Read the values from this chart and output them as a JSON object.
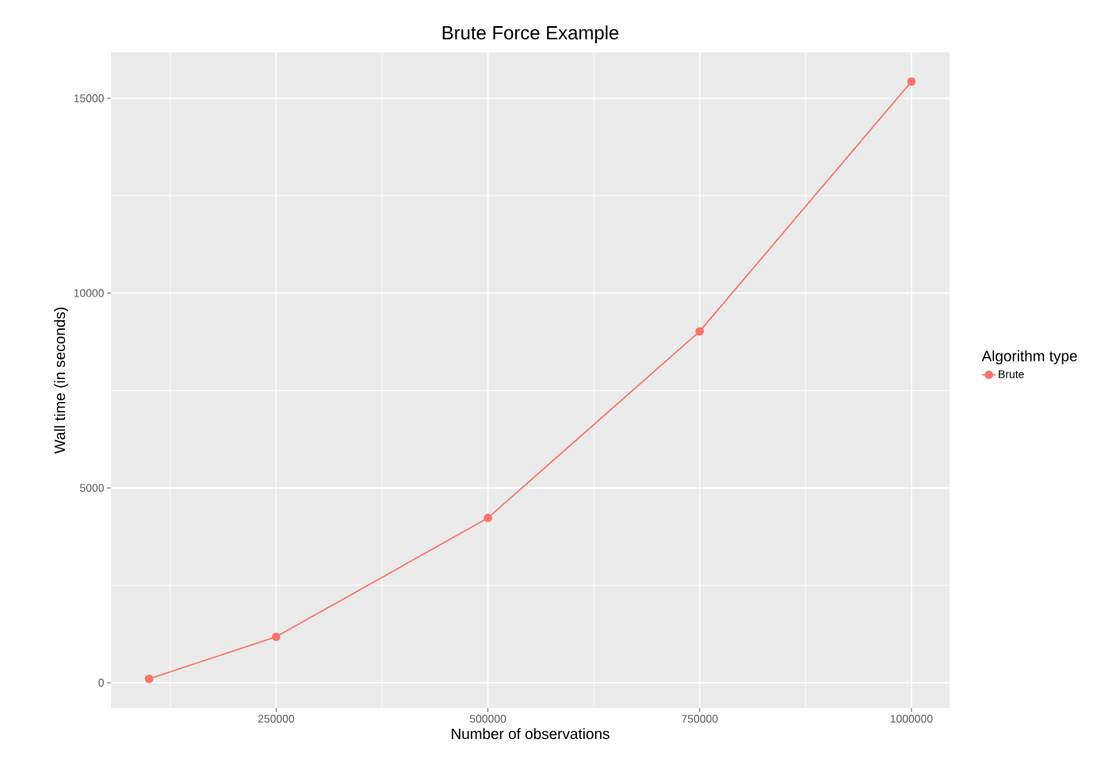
{
  "chart_data": {
    "type": "line",
    "title": "Brute Force Example",
    "xlabel": "Number of observations",
    "ylabel": "Wall time (in seconds)",
    "legend_title": "Algorithm type",
    "x": [
      100000,
      250000,
      500000,
      750000,
      1000000
    ],
    "series": [
      {
        "name": "Brute",
        "color": "#f8766d",
        "values": [
          100,
          1180,
          4230,
          9020,
          15430
        ]
      }
    ],
    "xlim": [
      55000,
      1045000
    ],
    "ylim": [
      -650,
      16180
    ],
    "xticks": [
      250000,
      500000,
      750000,
      1000000
    ],
    "yticks": [
      0,
      5000,
      10000,
      15000
    ],
    "grid": true,
    "legend": "right",
    "marker": "circle",
    "line_style": "solid"
  }
}
